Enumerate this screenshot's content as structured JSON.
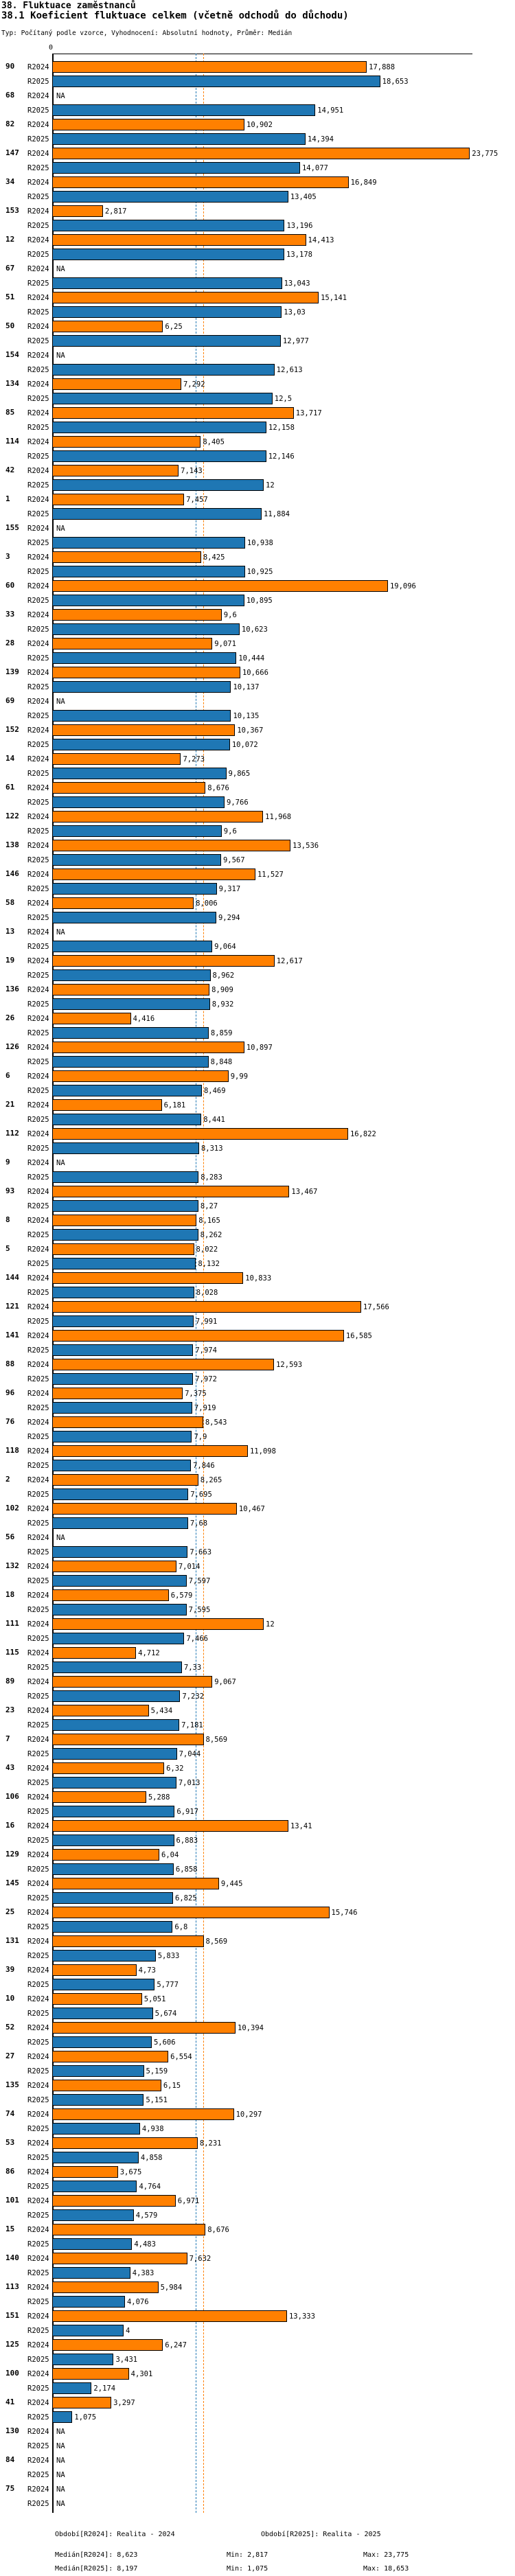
{
  "title": "38. Fluktuace zaměstnanců",
  "subtitle": "38.1 Koeficient fluktuace celkem (včetně odchodů do důchodu)",
  "meta": "Typ: Počítaný podle vzorce, Vyhodnocení: Absolutní hodnoty, Průměr: Medián",
  "colors": {
    "r2024_bar": "#ff8000",
    "r2025_bar": "#1f77b4",
    "median_r2024_line": "#ff8000",
    "median_r2025_line": "#1f77b4",
    "bar_border": "#000000"
  },
  "chart_data": {
    "type": "bar",
    "orientation": "horizontal",
    "title": "38.1 Koeficient fluktuace celkem (včetně odchodů do důchodu)",
    "xlabel": "",
    "ylabel": "",
    "xlim": [
      0,
      24.5
    ],
    "grid": false,
    "axis": {
      "zero_label": "0"
    },
    "series_labels": {
      "r2024": "R2024",
      "r2025": "R2025"
    },
    "na_label": "NA",
    "medians": {
      "r2024": 8.623,
      "r2025": 8.197
    },
    "groups": [
      {
        "id": "90",
        "r2024": "17,888",
        "r2025": "18,653"
      },
      {
        "id": "68",
        "r2024": "NA",
        "r2025": "14,951"
      },
      {
        "id": "82",
        "r2024": "10,902",
        "r2025": "14,394"
      },
      {
        "id": "147",
        "r2024": "23,775",
        "r2025": "14,077"
      },
      {
        "id": "34",
        "r2024": "16,849",
        "r2025": "13,405"
      },
      {
        "id": "153",
        "r2024": "2,817",
        "r2025": "13,196"
      },
      {
        "id": "12",
        "r2024": "14,413",
        "r2025": "13,178"
      },
      {
        "id": "67",
        "r2024": "NA",
        "r2025": "13,043"
      },
      {
        "id": "51",
        "r2024": "15,141",
        "r2025": "13,03"
      },
      {
        "id": "50",
        "r2024": "6,25",
        "r2025": "12,977"
      },
      {
        "id": "154",
        "r2024": "NA",
        "r2025": "12,613"
      },
      {
        "id": "134",
        "r2024": "7,292",
        "r2025": "12,5"
      },
      {
        "id": "85",
        "r2024": "13,717",
        "r2025": "12,158"
      },
      {
        "id": "114",
        "r2024": "8,405",
        "r2025": "12,146"
      },
      {
        "id": "42",
        "r2024": "7,143",
        "r2025": "12"
      },
      {
        "id": "1",
        "r2024": "7,457",
        "r2025": "11,884"
      },
      {
        "id": "155",
        "r2024": "NA",
        "r2025": "10,938"
      },
      {
        "id": "3",
        "r2024": "8,425",
        "r2025": "10,925"
      },
      {
        "id": "60",
        "r2024": "19,096",
        "r2025": "10,895"
      },
      {
        "id": "33",
        "r2024": "9,6",
        "r2025": "10,623"
      },
      {
        "id": "28",
        "r2024": "9,071",
        "r2025": "10,444"
      },
      {
        "id": "139",
        "r2024": "10,666",
        "r2025": "10,137"
      },
      {
        "id": "69",
        "r2024": "NA",
        "r2025": "10,135"
      },
      {
        "id": "152",
        "r2024": "10,367",
        "r2025": "10,072"
      },
      {
        "id": "14",
        "r2024": "7,273",
        "r2025": "9,865"
      },
      {
        "id": "61",
        "r2024": "8,676",
        "r2025": "9,766"
      },
      {
        "id": "122",
        "r2024": "11,968",
        "r2025": "9,6"
      },
      {
        "id": "138",
        "r2024": "13,536",
        "r2025": "9,567"
      },
      {
        "id": "146",
        "r2024": "11,527",
        "r2025": "9,317"
      },
      {
        "id": "58",
        "r2024": "8,006",
        "r2025": "9,294"
      },
      {
        "id": "13",
        "r2024": "NA",
        "r2025": "9,064"
      },
      {
        "id": "19",
        "r2024": "12,617",
        "r2025": "8,962"
      },
      {
        "id": "136",
        "r2024": "8,909",
        "r2025": "8,932"
      },
      {
        "id": "26",
        "r2024": "4,416",
        "r2025": "8,859"
      },
      {
        "id": "126",
        "r2024": "10,897",
        "r2025": "8,848"
      },
      {
        "id": "6",
        "r2024": "9,99",
        "r2025": "8,469"
      },
      {
        "id": "21",
        "r2024": "6,181",
        "r2025": "8,441"
      },
      {
        "id": "112",
        "r2024": "16,822",
        "r2025": "8,313"
      },
      {
        "id": "9",
        "r2024": "NA",
        "r2025": "8,283"
      },
      {
        "id": "93",
        "r2024": "13,467",
        "r2025": "8,27"
      },
      {
        "id": "8",
        "r2024": "8,165",
        "r2025": "8,262"
      },
      {
        "id": "5",
        "r2024": "8,022",
        "r2025": "8,132"
      },
      {
        "id": "144",
        "r2024": "10,833",
        "r2025": "8,028"
      },
      {
        "id": "121",
        "r2024": "17,566",
        "r2025": "7,991"
      },
      {
        "id": "141",
        "r2024": "16,585",
        "r2025": "7,974"
      },
      {
        "id": "88",
        "r2024": "12,593",
        "r2025": "7,972"
      },
      {
        "id": "96",
        "r2024": "7,375",
        "r2025": "7,919"
      },
      {
        "id": "76",
        "r2024": "8,543",
        "r2025": "7,9"
      },
      {
        "id": "118",
        "r2024": "11,098",
        "r2025": "7,846"
      },
      {
        "id": "2",
        "r2024": "8,265",
        "r2025": "7,695"
      },
      {
        "id": "102",
        "r2024": "10,467",
        "r2025": "7,68"
      },
      {
        "id": "56",
        "r2024": "NA",
        "r2025": "7,663"
      },
      {
        "id": "132",
        "r2024": "7,014",
        "r2025": "7,597"
      },
      {
        "id": "18",
        "r2024": "6,579",
        "r2025": "7,595"
      },
      {
        "id": "111",
        "r2024": "12",
        "r2025": "7,466"
      },
      {
        "id": "115",
        "r2024": "4,712",
        "r2025": "7,33"
      },
      {
        "id": "89",
        "r2024": "9,067",
        "r2025": "7,232"
      },
      {
        "id": "23",
        "r2024": "5,434",
        "r2025": "7,181"
      },
      {
        "id": "7",
        "r2024": "8,569",
        "r2025": "7,044"
      },
      {
        "id": "43",
        "r2024": "6,32",
        "r2025": "7,013"
      },
      {
        "id": "106",
        "r2024": "5,288",
        "r2025": "6,917"
      },
      {
        "id": "16",
        "r2024": "13,41",
        "r2025": "6,883"
      },
      {
        "id": "129",
        "r2024": "6,04",
        "r2025": "6,858"
      },
      {
        "id": "145",
        "r2024": "9,445",
        "r2025": "6,825"
      },
      {
        "id": "25",
        "r2024": "15,746",
        "r2025": "6,8"
      },
      {
        "id": "131",
        "r2024": "8,569",
        "r2025": "5,833"
      },
      {
        "id": "39",
        "r2024": "4,73",
        "r2025": "5,777"
      },
      {
        "id": "10",
        "r2024": "5,051",
        "r2025": "5,674"
      },
      {
        "id": "52",
        "r2024": "10,394",
        "r2025": "5,606"
      },
      {
        "id": "27",
        "r2024": "6,554",
        "r2025": "5,159"
      },
      {
        "id": "135",
        "r2024": "6,15",
        "r2025": "5,151"
      },
      {
        "id": "74",
        "r2024": "10,297",
        "r2025": "4,938"
      },
      {
        "id": "53",
        "r2024": "8,231",
        "r2025": "4,858"
      },
      {
        "id": "86",
        "r2024": "3,675",
        "r2025": "4,764"
      },
      {
        "id": "101",
        "r2024": "6,971",
        "r2025": "4,579"
      },
      {
        "id": "15",
        "r2024": "8,676",
        "r2025": "4,483"
      },
      {
        "id": "140",
        "r2024": "7,632",
        "r2025": "4,383"
      },
      {
        "id": "113",
        "r2024": "5,984",
        "r2025": "4,076"
      },
      {
        "id": "151",
        "r2024": "13,333",
        "r2025": "4"
      },
      {
        "id": "125",
        "r2024": "6,247",
        "r2025": "3,431"
      },
      {
        "id": "100",
        "r2024": "4,301",
        "r2025": "2,174"
      },
      {
        "id": "41",
        "r2024": "3,297",
        "r2025": "1,075"
      },
      {
        "id": "130",
        "r2024": "NA",
        "r2025": "NA"
      },
      {
        "id": "84",
        "r2024": "NA",
        "r2025": "NA"
      },
      {
        "id": "75",
        "r2024": "NA",
        "r2025": "NA"
      }
    ]
  },
  "legend": {
    "period_r2024": "Období[R2024]: Realita - 2024",
    "period_r2025": "Období[R2025]: Realita - 2025",
    "median_r2024": "Medián[R2024]: 8,623",
    "median_r2025": "Medián[R2025]: 8,197",
    "min_r2024": "Min: 2,817",
    "max_r2024": "Max: 23,775",
    "min_r2025": "Min: 1,075",
    "max_r2025": "Max: 18,653"
  }
}
